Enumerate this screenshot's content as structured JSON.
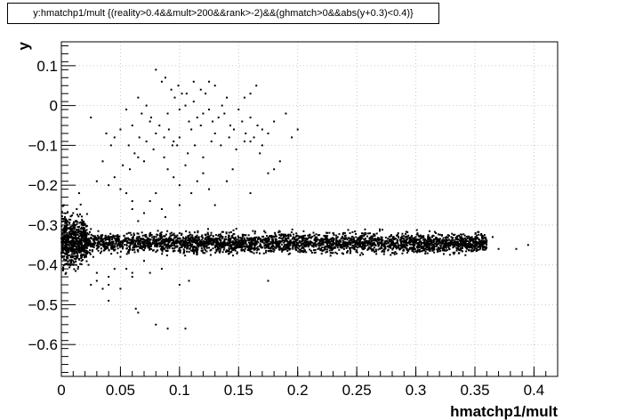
{
  "chart_data": {
    "type": "scatter",
    "title": "y:hmatchp1/mult {(reality>0.4&&mult>200&&rank>-2)&&(ghmatch>0&&abs(y+0.3)<0.4)}",
    "xlabel": "hmatchp1/mult",
    "ylabel": "y",
    "xlim": [
      0,
      0.42
    ],
    "ylim": [
      -0.68,
      0.16
    ],
    "xticks": [
      0,
      0.05,
      0.1,
      0.15,
      0.2,
      0.25,
      0.3,
      0.35,
      0.4
    ],
    "xtick_labels": [
      "0",
      "0.05",
      "0.1",
      "0.15",
      "0.2",
      "0.25",
      "0.3",
      "0.35",
      "0.4"
    ],
    "yticks": [
      -0.6,
      -0.5,
      -0.4,
      -0.3,
      -0.2,
      -0.1,
      0,
      0.1
    ],
    "ytick_labels": [
      "−0.6",
      "−0.5",
      "−0.4",
      "−0.3",
      "−0.2",
      "−0.1",
      "0",
      "0.1"
    ],
    "grid": true,
    "marker_color": "#000000",
    "band": {
      "x_range": [
        0.02,
        0.36
      ],
      "y_center": -0.345,
      "y_spread": 0.012
    },
    "points": [
      [
        0.002,
        -0.25
      ],
      [
        0.003,
        -0.28
      ],
      [
        0.005,
        -0.3
      ],
      [
        0.004,
        -0.42
      ],
      [
        0.006,
        -0.4
      ],
      [
        0.008,
        -0.38
      ],
      [
        0.01,
        -0.27
      ],
      [
        0.012,
        -0.29
      ],
      [
        0.015,
        -0.22
      ],
      [
        0.018,
        -0.33
      ],
      [
        0.02,
        -0.3
      ],
      [
        0.003,
        -0.36
      ],
      [
        0.007,
        -0.32
      ],
      [
        0.009,
        -0.35
      ],
      [
        0.011,
        -0.31
      ],
      [
        0.013,
        -0.37
      ],
      [
        0.016,
        -0.36
      ],
      [
        0.019,
        -0.34
      ],
      [
        0.022,
        -0.32
      ],
      [
        0.025,
        -0.31
      ],
      [
        0.014,
        -0.41
      ],
      [
        0.017,
        -0.39
      ],
      [
        0.021,
        -0.38
      ],
      [
        0.024,
        -0.37
      ],
      [
        0.001,
        -0.33
      ],
      [
        0.002,
        -0.37
      ],
      [
        0.004,
        -0.29
      ],
      [
        0.006,
        -0.34
      ],
      [
        0.008,
        -0.31
      ],
      [
        0.01,
        -0.39
      ],
      [
        0.012,
        -0.33
      ],
      [
        0.013,
        -0.26
      ],
      [
        0.026,
        -0.35
      ],
      [
        0.028,
        -0.34
      ],
      [
        0.03,
        -0.36
      ],
      [
        0.032,
        -0.33
      ],
      [
        0.035,
        -0.35
      ],
      [
        0.023,
        -0.4
      ],
      [
        0.027,
        -0.38
      ],
      [
        0.03,
        -0.42
      ],
      [
        0.025,
        -0.45
      ],
      [
        0.04,
        -0.43
      ],
      [
        0.035,
        -0.46
      ],
      [
        0.04,
        -0.49
      ],
      [
        0.045,
        -0.41
      ],
      [
        0.05,
        -0.38
      ],
      [
        0.055,
        -0.41
      ],
      [
        0.06,
        -0.43
      ],
      [
        0.065,
        -0.52
      ],
      [
        0.063,
        -0.51
      ],
      [
        0.08,
        -0.55
      ],
      [
        0.09,
        -0.56
      ],
      [
        0.105,
        -0.56
      ],
      [
        0.1,
        -0.45
      ],
      [
        0.108,
        -0.44
      ],
      [
        0.075,
        -0.42
      ],
      [
        0.175,
        -0.44
      ],
      [
        0.085,
        -0.41
      ],
      [
        0.07,
        -0.39
      ],
      [
        0.06,
        -0.24
      ],
      [
        0.055,
        -0.22
      ],
      [
        0.05,
        -0.21
      ],
      [
        0.045,
        -0.18
      ],
      [
        0.035,
        -0.14
      ],
      [
        0.03,
        -0.19
      ],
      [
        0.04,
        -0.2
      ],
      [
        0.058,
        -0.16
      ],
      [
        0.062,
        -0.12
      ],
      [
        0.066,
        -0.08
      ],
      [
        0.07,
        -0.14
      ],
      [
        0.075,
        -0.04
      ],
      [
        0.078,
        -0.11
      ],
      [
        0.08,
        0.09
      ],
      [
        0.085,
        0.06
      ],
      [
        0.088,
        0.07
      ],
      [
        0.09,
        -0.02
      ],
      [
        0.093,
        0.04
      ],
      [
        0.096,
        0.02
      ],
      [
        0.1,
        -0.01
      ],
      [
        0.102,
        0.03
      ],
      [
        0.105,
        0.0
      ],
      [
        0.108,
        -0.04
      ],
      [
        0.11,
        -0.06
      ],
      [
        0.112,
        0.01
      ],
      [
        0.115,
        -0.03
      ],
      [
        0.118,
        -0.05
      ],
      [
        0.12,
        -0.02
      ],
      [
        0.122,
        0.03
      ],
      [
        0.125,
        -0.01
      ],
      [
        0.128,
        -0.04
      ],
      [
        0.13,
        -0.07
      ],
      [
        0.133,
        -0.03
      ],
      [
        0.136,
        0.0
      ],
      [
        0.138,
        -0.02
      ],
      [
        0.14,
        0.02
      ],
      [
        0.143,
        -0.05
      ],
      [
        0.146,
        -0.06
      ],
      [
        0.15,
        -0.01
      ],
      [
        0.153,
        -0.04
      ],
      [
        0.156,
        -0.07
      ],
      [
        0.16,
        -0.03
      ],
      [
        0.163,
        -0.08
      ],
      [
        0.166,
        -0.05
      ],
      [
        0.17,
        -0.06
      ],
      [
        0.065,
        0.02
      ],
      [
        0.068,
        -0.02
      ],
      [
        0.072,
        0.0
      ],
      [
        0.076,
        -0.03
      ],
      [
        0.083,
        -0.05
      ],
      [
        0.087,
        -0.08
      ],
      [
        0.091,
        -0.06
      ],
      [
        0.095,
        -0.09
      ],
      [
        0.098,
        -0.1
      ],
      [
        0.06,
        -0.05
      ],
      [
        0.055,
        -0.01
      ],
      [
        0.05,
        -0.06
      ],
      [
        0.045,
        -0.08
      ],
      [
        0.042,
        -0.1
      ],
      [
        0.038,
        -0.07
      ],
      [
        0.025,
        -0.03
      ],
      [
        0.052,
        -0.15
      ],
      [
        0.057,
        -0.1
      ],
      [
        0.065,
        -0.13
      ],
      [
        0.072,
        -0.09
      ],
      [
        0.08,
        -0.07
      ],
      [
        0.087,
        -0.13
      ],
      [
        0.094,
        -0.1
      ],
      [
        0.1,
        -0.08
      ],
      [
        0.107,
        -0.12
      ],
      [
        0.113,
        -0.1
      ],
      [
        0.12,
        -0.13
      ],
      [
        0.127,
        -0.09
      ],
      [
        0.135,
        -0.1
      ],
      [
        0.142,
        -0.08
      ],
      [
        0.148,
        -0.11
      ],
      [
        0.155,
        -0.09
      ],
      [
        0.16,
        0.03
      ],
      [
        0.165,
        0.05
      ],
      [
        0.13,
        0.05
      ],
      [
        0.125,
        0.06
      ],
      [
        0.118,
        0.04
      ],
      [
        0.112,
        0.06
      ],
      [
        0.106,
        0.03
      ],
      [
        0.099,
        0.05
      ],
      [
        0.09,
        -0.16
      ],
      [
        0.095,
        -0.18
      ],
      [
        0.1,
        -0.2
      ],
      [
        0.105,
        -0.15
      ],
      [
        0.11,
        -0.22
      ],
      [
        0.115,
        -0.19
      ],
      [
        0.12,
        -0.17
      ],
      [
        0.125,
        -0.21
      ],
      [
        0.08,
        -0.22
      ],
      [
        0.085,
        -0.26
      ],
      [
        0.088,
        -0.28
      ],
      [
        0.07,
        -0.27
      ],
      [
        0.075,
        -0.24
      ],
      [
        0.065,
        -0.29
      ],
      [
        0.06,
        -0.26
      ],
      [
        0.1,
        -0.25
      ],
      [
        0.14,
        -0.19
      ],
      [
        0.145,
        -0.16
      ],
      [
        0.18,
        -0.16
      ],
      [
        0.185,
        -0.14
      ],
      [
        0.19,
        -0.02
      ],
      [
        0.195,
        -0.08
      ],
      [
        0.2,
        -0.06
      ],
      [
        0.17,
        -0.1
      ],
      [
        0.175,
        -0.07
      ],
      [
        0.18,
        -0.04
      ],
      [
        0.155,
        0.02
      ],
      [
        0.16,
        -0.09
      ],
      [
        0.168,
        -0.12
      ],
      [
        0.175,
        -0.17
      ],
      [
        0.16,
        -0.22
      ],
      [
        0.13,
        -0.25
      ],
      [
        0.24,
        -0.32
      ],
      [
        0.3,
        -0.33
      ],
      [
        0.33,
        -0.33
      ],
      [
        0.36,
        -0.34
      ],
      [
        0.37,
        -0.36
      ],
      [
        0.365,
        -0.33
      ],
      [
        0.395,
        -0.35
      ],
      [
        0.385,
        -0.36
      ],
      [
        0.23,
        -0.37
      ],
      [
        0.28,
        -0.37
      ],
      [
        0.12,
        -0.37
      ],
      [
        0.06,
        -0.42
      ],
      [
        0.03,
        -0.44
      ],
      [
        0.05,
        -0.46
      ],
      [
        0.04,
        -0.45
      ]
    ]
  }
}
